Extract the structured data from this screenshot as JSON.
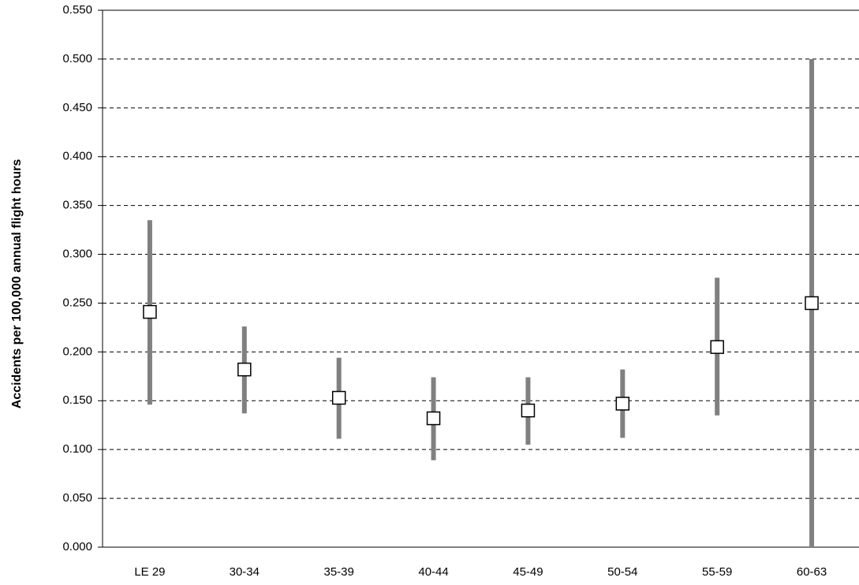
{
  "chart_data": {
    "type": "errorbar",
    "y_label": "Accidents per 100,000 annual flight hours",
    "categories": [
      "LE 29",
      "30-34",
      "35-39",
      "40-44",
      "45-49",
      "50-54",
      "55-59",
      "60-63"
    ],
    "values": [
      0.241,
      0.182,
      0.153,
      0.132,
      0.14,
      0.147,
      0.205,
      0.25
    ],
    "low": [
      0.146,
      0.137,
      0.111,
      0.089,
      0.105,
      0.112,
      0.135,
      0.0
    ],
    "high": [
      0.335,
      0.226,
      0.194,
      0.174,
      0.174,
      0.182,
      0.276,
      0.5
    ],
    "marker_color": "#000000",
    "bar_color": "#808080",
    "ylim": [
      0,
      0.55
    ],
    "yticks": [
      {
        "value": 0,
        "label": "0.000"
      },
      {
        "value": 0.05,
        "label": "0.050"
      },
      {
        "value": 0.1,
        "label": "0.100"
      },
      {
        "value": 0.15,
        "label": "0.150"
      },
      {
        "value": 0.2,
        "label": "0.200"
      },
      {
        "value": 0.25,
        "label": "0.250"
      },
      {
        "value": 0.3,
        "label": "0.300"
      },
      {
        "value": 0.35,
        "label": "0.350"
      },
      {
        "value": 0.4,
        "label": "0.400"
      },
      {
        "value": 0.45,
        "label": "0.450"
      },
      {
        "value": 0.5,
        "label": "0.500"
      },
      {
        "value": 0.55,
        "label": "0.550"
      }
    ],
    "grid": true
  }
}
